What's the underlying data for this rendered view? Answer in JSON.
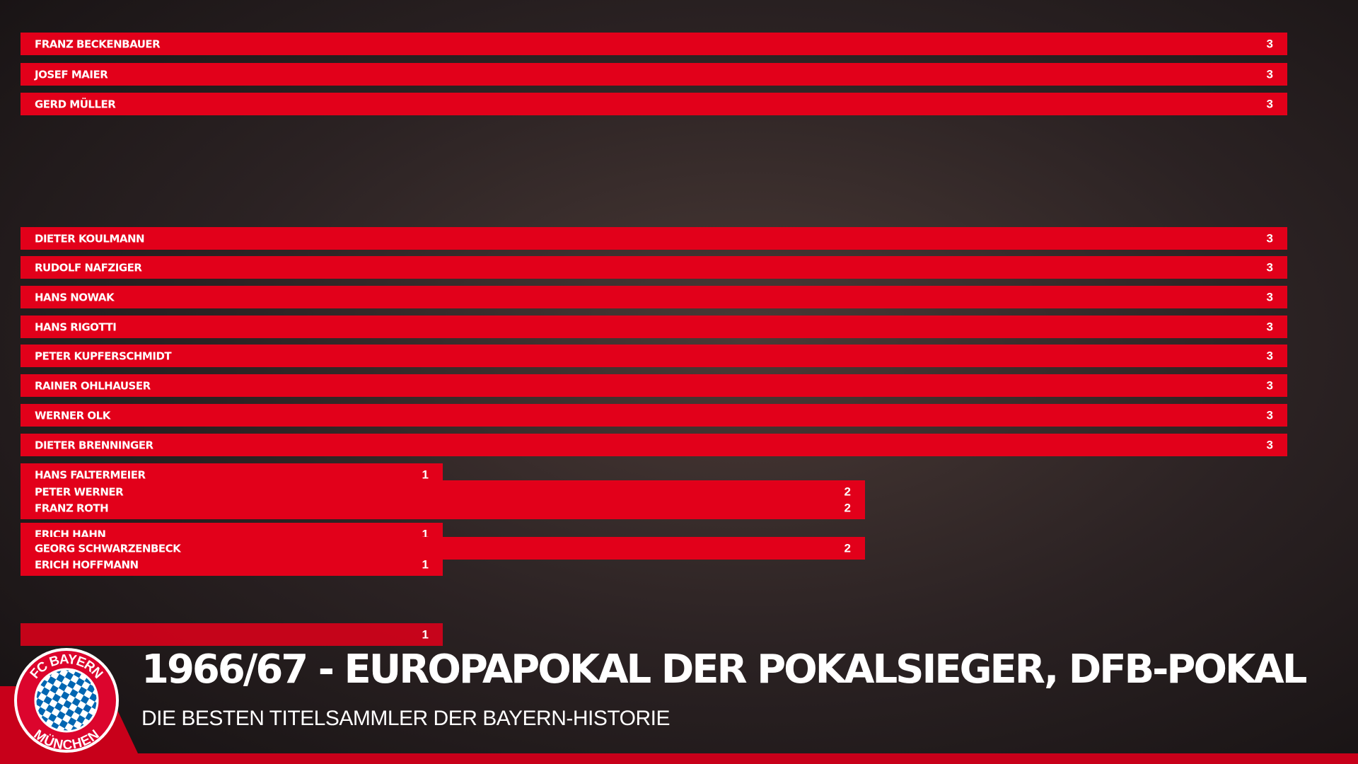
{
  "chart_data": {
    "type": "bar",
    "title": "1966/67 - EUROPAPOKAL DER POKALSIEGER, DFB-POKAL",
    "subtitle": "DIE BESTEN TITELSAMMLER DER BAYERN-HISTORIE",
    "categories": [
      "FRANZ BECKENBAUER",
      "JOSEF MAIER",
      "GERD MÜLLER",
      "DIETER KOULMANN",
      "RUDOLF NAFZIGER",
      "HANS NOWAK",
      "HANS RIGOTTI",
      "PETER KUPFERSCHMIDT",
      "RAINER OHLHAUSER",
      "WERNER OLK",
      "DIETER BRENNINGER",
      "HANS FALTERMEIER",
      "PETER WERNER",
      "FRANZ ROTH",
      "ERICH HAHN",
      "GEORG SCHWARZENBECK",
      "ERICH HOFFMANN",
      null
    ],
    "values": [
      3,
      3,
      3,
      3,
      3,
      3,
      3,
      3,
      3,
      3,
      3,
      1,
      2,
      2,
      1,
      2,
      1,
      1
    ],
    "color": "#e2001a",
    "xlim": [
      0,
      3
    ]
  },
  "logo": {
    "top": "FC BAYERN",
    "bottom": "MÜNCHEN"
  }
}
